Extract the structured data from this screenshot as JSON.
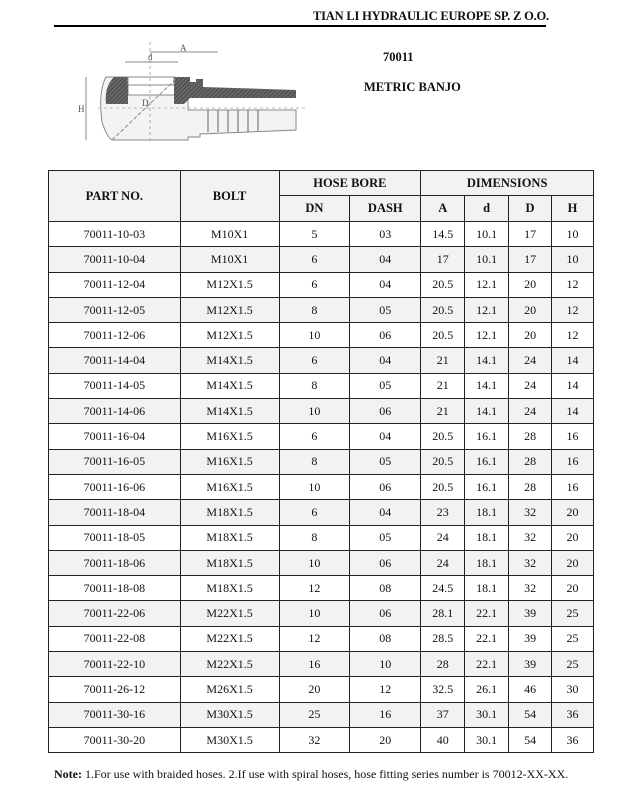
{
  "header": {
    "company": "TIAN LI HYDRAULIC EUROPE SP. Z O.O.",
    "series": "70011",
    "product_name": "METRIC BANJO"
  },
  "drawing": {
    "labels": {
      "A": "A",
      "d": "d",
      "D": "D",
      "H": "H"
    }
  },
  "table": {
    "headers": {
      "part_no": "PART NO.",
      "bolt": "BOLT",
      "hose_bore": "HOSE BORE",
      "dimensions": "DIMENSIONS",
      "dn": "DN",
      "dash": "DASH",
      "a": "A",
      "d": "d",
      "D": "D",
      "h": "H"
    },
    "rows": [
      [
        "70011-10-03",
        "M10X1",
        "5",
        "03",
        "14.5",
        "10.1",
        "17",
        "10"
      ],
      [
        "70011-10-04",
        "M10X1",
        "6",
        "04",
        "17",
        "10.1",
        "17",
        "10"
      ],
      [
        "70011-12-04",
        "M12X1.5",
        "6",
        "04",
        "20.5",
        "12.1",
        "20",
        "12"
      ],
      [
        "70011-12-05",
        "M12X1.5",
        "8",
        "05",
        "20.5",
        "12.1",
        "20",
        "12"
      ],
      [
        "70011-12-06",
        "M12X1.5",
        "10",
        "06",
        "20.5",
        "12.1",
        "20",
        "12"
      ],
      [
        "70011-14-04",
        "M14X1.5",
        "6",
        "04",
        "21",
        "14.1",
        "24",
        "14"
      ],
      [
        "70011-14-05",
        "M14X1.5",
        "8",
        "05",
        "21",
        "14.1",
        "24",
        "14"
      ],
      [
        "70011-14-06",
        "M14X1.5",
        "10",
        "06",
        "21",
        "14.1",
        "24",
        "14"
      ],
      [
        "70011-16-04",
        "M16X1.5",
        "6",
        "04",
        "20.5",
        "16.1",
        "28",
        "16"
      ],
      [
        "70011-16-05",
        "M16X1.5",
        "8",
        "05",
        "20.5",
        "16.1",
        "28",
        "16"
      ],
      [
        "70011-16-06",
        "M16X1.5",
        "10",
        "06",
        "20.5",
        "16.1",
        "28",
        "16"
      ],
      [
        "70011-18-04",
        "M18X1.5",
        "6",
        "04",
        "23",
        "18.1",
        "32",
        "20"
      ],
      [
        "70011-18-05",
        "M18X1.5",
        "8",
        "05",
        "24",
        "18.1",
        "32",
        "20"
      ],
      [
        "70011-18-06",
        "M18X1.5",
        "10",
        "06",
        "24",
        "18.1",
        "32",
        "20"
      ],
      [
        "70011-18-08",
        "M18X1.5",
        "12",
        "08",
        "24.5",
        "18.1",
        "32",
        "20"
      ],
      [
        "70011-22-06",
        "M22X1.5",
        "10",
        "06",
        "28.1",
        "22.1",
        "39",
        "25"
      ],
      [
        "70011-22-08",
        "M22X1.5",
        "12",
        "08",
        "28.5",
        "22.1",
        "39",
        "25"
      ],
      [
        "70011-22-10",
        "M22X1.5",
        "16",
        "10",
        "28",
        "22.1",
        "39",
        "25"
      ],
      [
        "70011-26-12",
        "M26X1.5",
        "20",
        "12",
        "32.5",
        "26.1",
        "46",
        "30"
      ],
      [
        "70011-30-16",
        "M30X1.5",
        "25",
        "16",
        "37",
        "30.1",
        "54",
        "36"
      ],
      [
        "70011-30-20",
        "M30X1.5",
        "32",
        "20",
        "40",
        "30.1",
        "54",
        "36"
      ]
    ]
  },
  "note": {
    "label": "Note:",
    "text": " 1.For use with braided hoses. 2.If use with spiral hoses, hose fitting series number is 70012-XX-XX."
  }
}
